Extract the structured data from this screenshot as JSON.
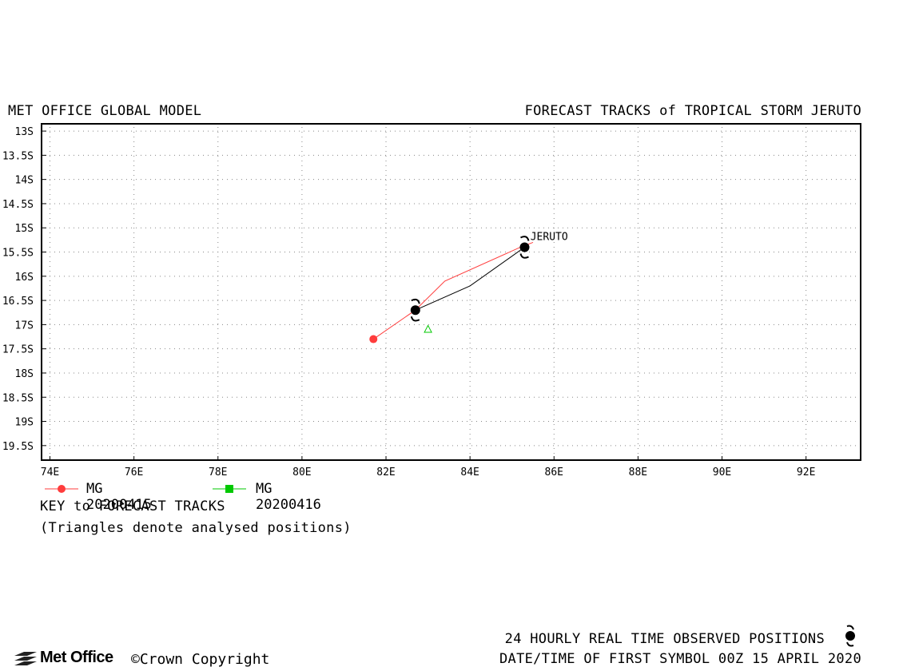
{
  "header": {
    "left_title": "MET OFFICE GLOBAL MODEL",
    "right_title": "FORECAST TRACKS of TROPICAL STORM JERUTO"
  },
  "map": {
    "lon_ticks": [
      "74E",
      "76E",
      "78E",
      "80E",
      "82E",
      "84E",
      "86E",
      "88E",
      "90E",
      "92E"
    ],
    "lat_ticks": [
      "13S",
      "13.5S",
      "14S",
      "14.5S",
      "15S",
      "15.5S",
      "16S",
      "16.5S",
      "17S",
      "17.5S",
      "18S",
      "18.5S",
      "19S",
      "19.5S"
    ],
    "lon_range": [
      73.8,
      93.3
    ],
    "lat_range": [
      -12.85,
      -19.8
    ],
    "grid": "dotted",
    "storm_label": "JERUTO",
    "storm_label_position": [
      85.4,
      -15.25
    ],
    "tracks": [
      {
        "name": "MG 20200415",
        "color": "#ff3c3c",
        "marker": "circle",
        "points": [
          [
            81.7,
            -17.3
          ],
          [
            82.7,
            -16.7
          ],
          [
            83.4,
            -16.1
          ],
          [
            85.2,
            -15.4
          ],
          [
            85.5,
            -15.3
          ]
        ]
      },
      {
        "name": "MG 20200416",
        "color": "#00c800",
        "marker": "square",
        "points": []
      },
      {
        "name": "observed",
        "color": "#000000",
        "marker": "none",
        "points": [
          [
            82.7,
            -16.7
          ],
          [
            84.0,
            -16.2
          ],
          [
            85.3,
            -15.4
          ]
        ]
      }
    ],
    "observed_symbols": [
      [
        82.7,
        -16.7
      ],
      [
        85.3,
        -15.4
      ]
    ],
    "analysed_triangles": [
      {
        "position": [
          83.0,
          -17.1
        ],
        "color": "#00c800"
      }
    ]
  },
  "legend": {
    "items": [
      {
        "label": "MG 20200415",
        "color": "#ff3c3c",
        "marker": "circle"
      },
      {
        "label": "MG 20200416",
        "color": "#00c800",
        "marker": "square"
      }
    ],
    "title": "KEY to FORECAST TRACKS",
    "note": "(Triangles denote analysed positions)"
  },
  "footer": {
    "logo_text": "Met Office",
    "copyright": "©Crown Copyright",
    "observed_positions": "24 HOURLY REAL TIME OBSERVED POSITIONS",
    "first_symbol": "DATE/TIME OF FIRST SYMBOL 00Z 15 APRIL 2020"
  }
}
